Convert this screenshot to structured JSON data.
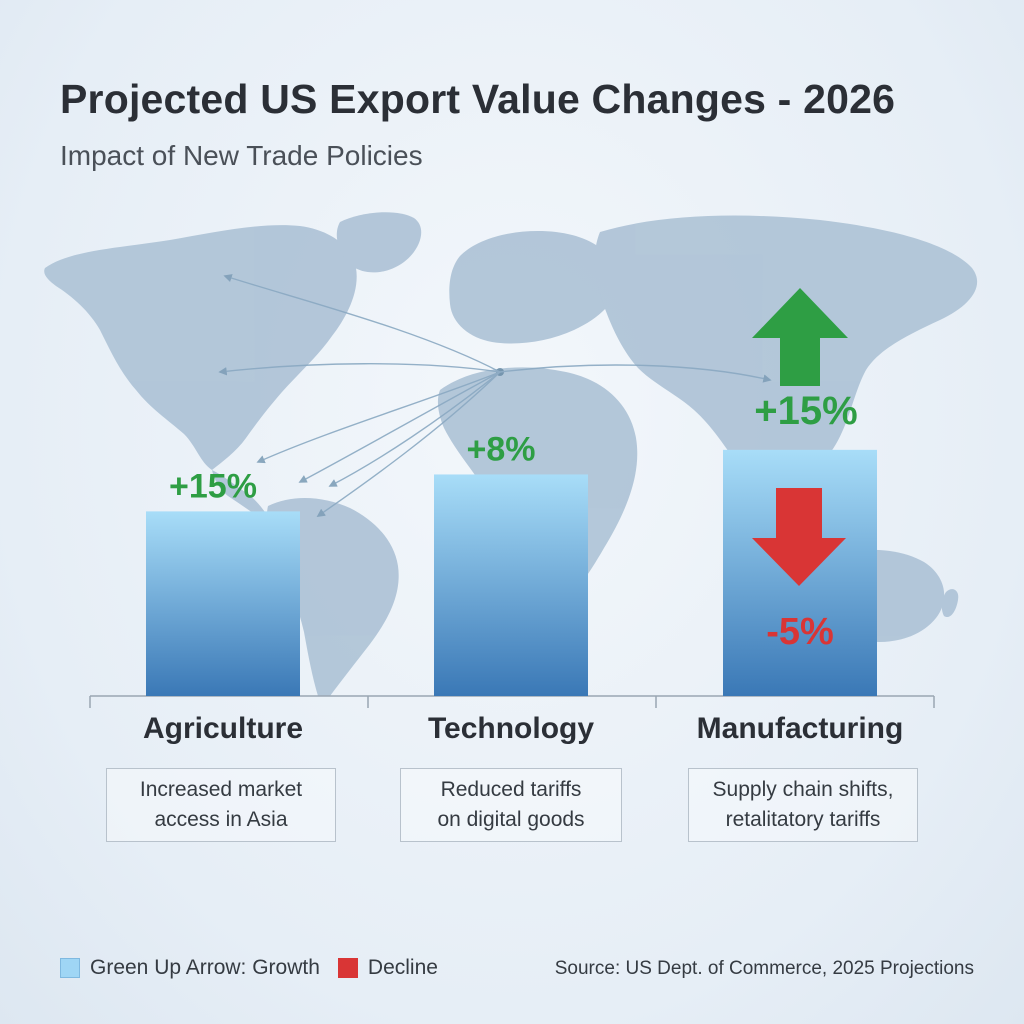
{
  "header": {
    "title": "Projected US Export Value Changes - 2026",
    "subtitle": "Impact of New Trade Policies"
  },
  "chart_data": {
    "type": "bar",
    "title": "Projected US Export Value Changes - 2026",
    "subtitle": "Impact of New Trade Policies",
    "categories": [
      "Agriculture",
      "Technology",
      "Manufacturing"
    ],
    "values": [
      15,
      18,
      20
    ],
    "data_labels": [
      "+15%",
      "+8%",
      "+15%"
    ],
    "annotations": [
      {
        "category": "Manufacturing",
        "label": "+15%",
        "direction": "up",
        "color": "#2e9e44"
      },
      {
        "category": "Manufacturing",
        "label": "-5%",
        "direction": "down",
        "color": "#d93535"
      }
    ],
    "notes": [
      [
        "Increased market",
        "access in Asia"
      ],
      [
        "Reduced tariffs",
        "on digital goods"
      ],
      [
        "Supply chain shifts,",
        "retalitatory tariffs"
      ]
    ],
    "ylim": [
      0,
      26
    ],
    "grid": false,
    "bar_gradient": [
      "#a8ddf8",
      "#3a78b6"
    ],
    "growth_color": "#2e9e44",
    "decline_color": "#d93535",
    "background_map": "world-map"
  },
  "legend": {
    "growth_label": "Green Up Arrow: Growth",
    "decline_label": "Decline",
    "position": "bottom-left"
  },
  "source": "Source: US Dept. of Commerce, 2025 Projections"
}
